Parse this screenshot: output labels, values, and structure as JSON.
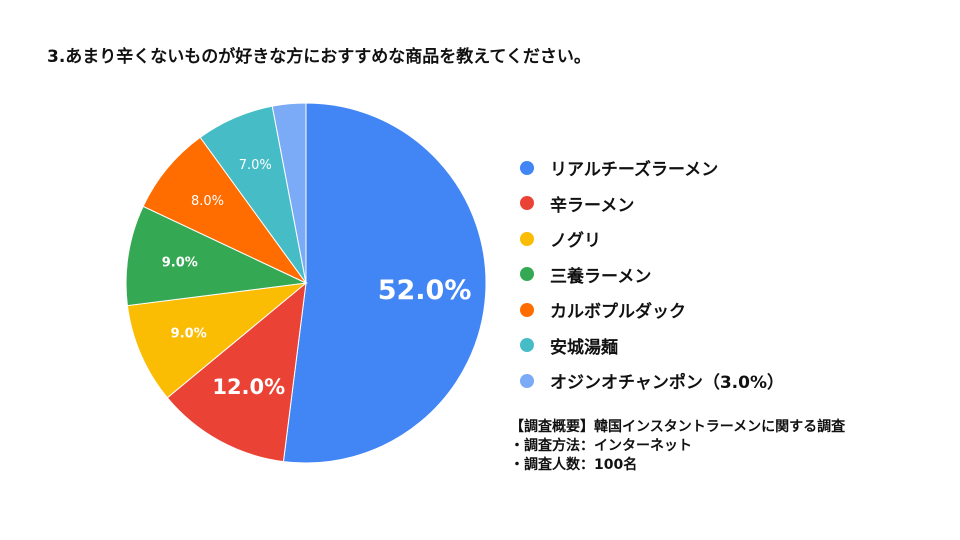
{
  "title": "3.あまり辛くないものが好きな方におすすめな商品を教えてください。",
  "chart_data": {
    "type": "pie",
    "categories": [
      "リアルチーズラーメン",
      "辛ラーメン",
      "ノグリ",
      "三養ラーメン",
      "カルボプルダック",
      "安城湯麺",
      "オジンオチャンポン（3.0%）"
    ],
    "values": [
      52.0,
      12.0,
      9.0,
      9.0,
      8.0,
      7.0,
      3.0
    ],
    "data_labels": [
      "52.0%",
      "12.0%",
      "9.0%",
      "9.0%",
      "8.0%",
      "7.0%",
      ""
    ],
    "colors": [
      "#4285f4",
      "#ea4335",
      "#fbbc04",
      "#34a853",
      "#ff6d01",
      "#46bdc6",
      "#7baaf7"
    ],
    "legend_position": "right"
  },
  "notes": [
    "【調査概要】韓国インスタントラーメンに関する調査",
    "・調査方法：インターネット",
    "・調査人数：100名"
  ]
}
